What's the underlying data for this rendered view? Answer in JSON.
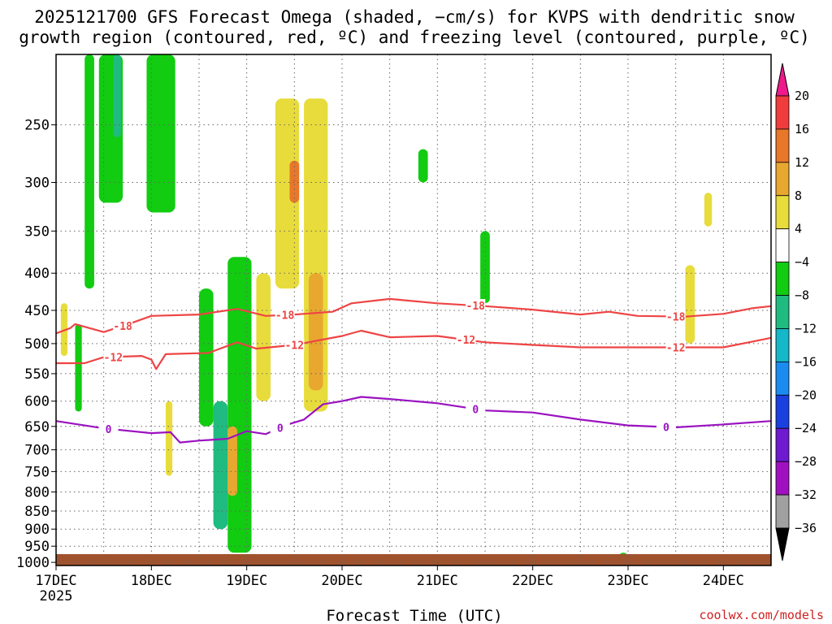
{
  "title": {
    "line1": "2025121700 GFS Forecast Omega (shaded, −cm/s) for KVPS with dendritic snow",
    "line2": "growth region (contoured, red, ºC) and freezing level (contoured, purple, ºC)"
  },
  "xlabel": "Forecast Time (UTC)",
  "credit": "coolwx.com/models",
  "chart_data": {
    "type": "heatmap",
    "title": "2025121700 GFS Forecast Omega (shaded, −cm/s) for KVPS with dendritic snow growth region (contoured, red, ºC) and freezing level (contoured, purple, ºC)",
    "xlabel": "Forecast Time (UTC)",
    "ylabel": "",
    "x_ticks": [
      "17DEC",
      "18DEC",
      "19DEC",
      "20DEC",
      "21DEC",
      "22DEC",
      "23DEC",
      "24DEC"
    ],
    "x_tick_year": "2025",
    "xlim_days": [
      0,
      7.5
    ],
    "y_scale": "log-pressure (inverted)",
    "y_ticks": [
      250,
      300,
      350,
      400,
      450,
      500,
      550,
      600,
      650,
      700,
      750,
      800,
      850,
      900,
      950,
      1000
    ],
    "ylim_hpa": [
      1010,
      200
    ],
    "grid": true,
    "colorbar": {
      "labels": [
        "20",
        "16",
        "12",
        "8",
        "4",
        "−4",
        "−8",
        "−12",
        "−16",
        "−20",
        "−24",
        "−28",
        "−32",
        "−36"
      ],
      "colors": [
        "#ee1a8c",
        "#f03c3c",
        "#e8772a",
        "#e8a830",
        "#e8dc3c",
        "#ffffff",
        "#11cc11",
        "#20bb80",
        "#15b8c8",
        "#1a8cf0",
        "#1a40e0",
        "#6e1ad0",
        "#a010c0",
        "#a0a0a0",
        "#000000"
      ]
    },
    "contours": [
      {
        "name": "-18",
        "color": "#ee4444",
        "points": [
          [
            0.0,
            484
          ],
          [
            0.15,
            476
          ],
          [
            0.2,
            470
          ],
          [
            0.5,
            482
          ],
          [
            0.8,
            468
          ],
          [
            1.0,
            458
          ],
          [
            1.5,
            456
          ],
          [
            1.9,
            448
          ],
          [
            2.2,
            458
          ],
          [
            2.5,
            456
          ],
          [
            2.9,
            452
          ],
          [
            3.1,
            440
          ],
          [
            3.5,
            434
          ],
          [
            4.0,
            440
          ],
          [
            4.5,
            444
          ],
          [
            5.0,
            449
          ],
          [
            5.5,
            456
          ],
          [
            5.8,
            452
          ],
          [
            6.1,
            458
          ],
          [
            6.6,
            459
          ],
          [
            7.0,
            455
          ],
          [
            7.3,
            447
          ],
          [
            7.5,
            444
          ]
        ],
        "labels": [
          [
            0.7,
            "-18"
          ],
          [
            2.4,
            "-18"
          ],
          [
            4.4,
            "-18"
          ],
          [
            6.5,
            "-18"
          ]
        ]
      },
      {
        "name": "-12",
        "color": "#ee4444",
        "points": [
          [
            0.0,
            532
          ],
          [
            0.3,
            532
          ],
          [
            0.5,
            522
          ],
          [
            0.9,
            520
          ],
          [
            1.0,
            526
          ],
          [
            1.05,
            542
          ],
          [
            1.15,
            517
          ],
          [
            1.6,
            515
          ],
          [
            1.9,
            498
          ],
          [
            2.1,
            508
          ],
          [
            2.5,
            502
          ],
          [
            3.0,
            488
          ],
          [
            3.2,
            480
          ],
          [
            3.5,
            490
          ],
          [
            4.0,
            488
          ],
          [
            4.5,
            498
          ],
          [
            5.0,
            502
          ],
          [
            5.5,
            506
          ],
          [
            6.0,
            506
          ],
          [
            6.5,
            506
          ],
          [
            7.0,
            506
          ],
          [
            7.3,
            497
          ],
          [
            7.5,
            491
          ]
        ],
        "labels": [
          [
            0.6,
            "-12"
          ],
          [
            2.5,
            "-12"
          ],
          [
            4.3,
            "-12"
          ],
          [
            6.5,
            "-12"
          ]
        ]
      },
      {
        "name": "0",
        "color": "#9a12c0",
        "points": [
          [
            0.0,
            639
          ],
          [
            0.5,
            654
          ],
          [
            1.0,
            664
          ],
          [
            1.2,
            662
          ],
          [
            1.3,
            684
          ],
          [
            1.5,
            680
          ],
          [
            1.8,
            676
          ],
          [
            2.0,
            660
          ],
          [
            2.2,
            666
          ],
          [
            2.4,
            648
          ],
          [
            2.6,
            636
          ],
          [
            2.8,
            606
          ],
          [
            3.0,
            600
          ],
          [
            3.2,
            592
          ],
          [
            3.5,
            596
          ],
          [
            4.0,
            604
          ],
          [
            4.5,
            618
          ],
          [
            5.0,
            622
          ],
          [
            5.5,
            636
          ],
          [
            6.0,
            648
          ],
          [
            6.5,
            652
          ],
          [
            7.0,
            646
          ],
          [
            7.5,
            639
          ]
        ],
        "labels": [
          [
            0.55,
            "0"
          ],
          [
            2.35,
            "0"
          ],
          [
            4.4,
            "0"
          ],
          [
            6.4,
            "0"
          ]
        ]
      }
    ],
    "omega_blobs": [
      {
        "x0": 0.05,
        "x1": 0.12,
        "p0": 440,
        "p1": 520,
        "value": 5
      },
      {
        "x0": 0.2,
        "x1": 0.27,
        "p0": 470,
        "p1": 620,
        "value": -6
      },
      {
        "x0": 0.3,
        "x1": 0.4,
        "p0": 200,
        "p1": 420,
        "value": -6
      },
      {
        "x0": 0.45,
        "x1": 0.7,
        "p0": 200,
        "p1": 320,
        "value": -6
      },
      {
        "x0": 0.6,
        "x1": 0.68,
        "p0": 200,
        "p1": 260,
        "value": -11
      },
      {
        "x0": 0.95,
        "x1": 1.25,
        "p0": 200,
        "p1": 330,
        "value": -6
      },
      {
        "x0": 1.15,
        "x1": 1.22,
        "p0": 600,
        "p1": 760,
        "value": 5
      },
      {
        "x0": 1.5,
        "x1": 1.65,
        "p0": 420,
        "p1": 650,
        "value": -6
      },
      {
        "x0": 1.8,
        "x1": 2.05,
        "p0": 380,
        "p1": 970,
        "value": -6
      },
      {
        "x0": 1.65,
        "x1": 1.8,
        "p0": 600,
        "p1": 900,
        "value": -9
      },
      {
        "x0": 1.8,
        "x1": 1.9,
        "p0": 650,
        "p1": 810,
        "value": 10
      },
      {
        "x0": 2.3,
        "x1": 2.55,
        "p0": 230,
        "p1": 420,
        "value": 6
      },
      {
        "x0": 2.45,
        "x1": 2.55,
        "p0": 280,
        "p1": 320,
        "value": 14
      },
      {
        "x0": 2.6,
        "x1": 2.85,
        "p0": 230,
        "p1": 620,
        "value": 6
      },
      {
        "x0": 2.65,
        "x1": 2.8,
        "p0": 400,
        "p1": 580,
        "value": 11
      },
      {
        "x0": 2.1,
        "x1": 2.25,
        "p0": 400,
        "p1": 600,
        "value": 5
      },
      {
        "x0": 3.8,
        "x1": 3.9,
        "p0": 270,
        "p1": 300,
        "value": -6
      },
      {
        "x0": 4.45,
        "x1": 4.55,
        "p0": 350,
        "p1": 440,
        "value": -6
      },
      {
        "x0": 6.6,
        "x1": 6.7,
        "p0": 390,
        "p1": 500,
        "value": 5
      },
      {
        "x0": 6.8,
        "x1": 6.88,
        "p0": 310,
        "p1": 345,
        "value": 5
      },
      {
        "x0": 5.9,
        "x1": 6.0,
        "p0": 970,
        "p1": 1000,
        "value": -6
      }
    ]
  }
}
